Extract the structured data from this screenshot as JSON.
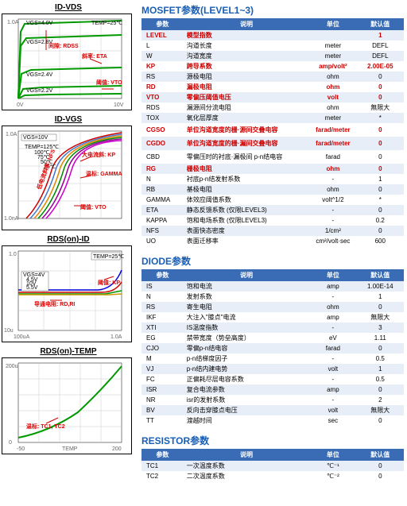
{
  "charts": {
    "id_vds": {
      "title": "ID-VDS",
      "type": "line",
      "xlim": [
        0,
        10
      ],
      "ylim": [
        0,
        1.0
      ],
      "background_color": "#ffffff",
      "grid_color": "#bbbbbb",
      "curve_colors": [
        "#009900",
        "#009900",
        "#009900",
        "#009900",
        "#009900"
      ],
      "curve_labels": [
        "VGS=4.0V",
        "VGS=2.8V",
        "VGS=2.4V",
        "VGS=2.2V"
      ],
      "text_labels": {
        "temp": "TEMP=25℃",
        "rdss": "间隙: RDSS",
        "eta": "斜率: ETA",
        "vto": "阈值: VTO"
      }
    },
    "id_vgs": {
      "title": "ID-VGS",
      "type": "line-log",
      "xlim": [
        0,
        5
      ],
      "ylim": [
        1e-08,
        1
      ],
      "background_color": "#ffffff",
      "grid_color": "#bbbbbb",
      "curve_colors": [
        "#cc0000",
        "#4477cc",
        "#dd8800",
        "#008800",
        "#990099",
        "#cc00cc"
      ],
      "temps": [
        "TEMP=125℃",
        "100℃",
        "75℃",
        "50℃",
        "25℃"
      ],
      "text_labels": {
        "vgs": "VGS=10V",
        "kp": "大电流斜: KP",
        "gamma": "温标: GAMMA",
        "nfs": "低电流斜率: NFS",
        "vto": "阈值: VTO"
      }
    },
    "rds_id": {
      "title": "RDS(on)-ID",
      "type": "line",
      "xlim": [
        0.0001,
        1
      ],
      "ylim": [
        1e-05,
        1
      ],
      "background_color": "#ffffff",
      "grid_color": "#bbbbbb",
      "curve_colors": [
        "#0000dd",
        "#cc0000",
        "#009900",
        "#cc9900"
      ],
      "vgs_labels": [
        "VGS=4V",
        "4.5V",
        "10V",
        "5.5V"
      ],
      "text_labels": {
        "temp": "TEMP=25℃",
        "kp": "阈值: KP",
        "rdri": "导通电阻: RD,RI"
      }
    },
    "rds_temp": {
      "title": "RDS(on)-TEMP",
      "type": "line",
      "xlim": [
        -50,
        200
      ],
      "ylim": [
        1e-05,
        0.0001
      ],
      "background_color": "#ffffff",
      "grid_color": "#bbbbbb",
      "curve_color": "#009900",
      "text_labels": {
        "tc": "温标: TC1, TC2"
      }
    }
  },
  "sections": {
    "mosfet": {
      "title": "MOSFET参数(LEVEL1~3)",
      "headers": [
        "参数",
        "说明",
        "单位",
        "默认值"
      ],
      "rows": [
        {
          "p": "LEVEL",
          "d": "模型指数",
          "u": "",
          "v": "1",
          "hl": true
        },
        {
          "p": "L",
          "d": "沟道长度",
          "u": "meter",
          "v": "DEFL"
        },
        {
          "p": "W",
          "d": "沟道宽度",
          "u": "meter",
          "v": "DEFL"
        },
        {
          "p": "KP",
          "d": "跨导系数",
          "u": "amp/volt²",
          "v": "2.00E-05",
          "hl": true
        },
        {
          "p": "RS",
          "d": "源极电阻",
          "u": "ohm",
          "v": "0"
        },
        {
          "p": "RD",
          "d": "漏极电阻",
          "u": "ohm",
          "v": "0",
          "hl": true
        },
        {
          "p": "VTO",
          "d": "零偏压阈值电压",
          "u": "volt",
          "v": "0",
          "hl": true
        },
        {
          "p": "RDS",
          "d": "漏源间分流电阻",
          "u": "ohm",
          "v": "無限大"
        },
        {
          "p": "TOX",
          "d": "氧化层厚度",
          "u": "meter",
          "v": "*"
        },
        {
          "p": "CGSO",
          "d": "单位沟道宽度的栅·源间交叠电容",
          "u": "farad/meter",
          "v": "0",
          "hl": true,
          "tall": true
        },
        {
          "p": "CGDO",
          "d": "单位沟道宽度的栅·漏间交叠电容",
          "u": "farad/meter",
          "v": "0",
          "hl": true,
          "tall": true
        },
        {
          "p": "CBD",
          "d": "零偏压时的衬底·漏极间 p-n结电容",
          "u": "farad",
          "v": "0",
          "tall": true
        },
        {
          "p": "RG",
          "d": "栅极电阻",
          "u": "ohm",
          "v": "0",
          "hl": true
        },
        {
          "p": "N",
          "d": "衬底p-n结发射系数",
          "u": "-",
          "v": "1"
        },
        {
          "p": "RB",
          "d": "基极电阻",
          "u": "ohm",
          "v": "0"
        },
        {
          "p": "GAMMA",
          "d": "体效应阈值系数",
          "u": "volt^1/2",
          "v": "*"
        },
        {
          "p": "ETA",
          "d": "静态反馈系数 (仅限LEVEL3)",
          "u": "-",
          "v": "0"
        },
        {
          "p": "KAPPA",
          "d": "饱和电场系数 (仅限LEVEL3)",
          "u": "-",
          "v": "0.2"
        },
        {
          "p": "NFS",
          "d": "表面快态密度",
          "u": "1/cm²",
          "v": "0"
        },
        {
          "p": "UO",
          "d": "表面迁移率",
          "u": "cm²/volt·sec",
          "v": "600"
        }
      ]
    },
    "diode": {
      "title": "DIODE参数",
      "headers": [
        "参数",
        "说明",
        "单位",
        "默认值"
      ],
      "rows": [
        {
          "p": "IS",
          "d": "饱和电流",
          "u": "amp",
          "v": "1.00E-14"
        },
        {
          "p": "N",
          "d": "发射系数",
          "u": "-",
          "v": "1"
        },
        {
          "p": "RS",
          "d": "寄生电阻",
          "u": "ohm",
          "v": "0"
        },
        {
          "p": "IKF",
          "d": "大注入\"膝点\"电流",
          "u": "amp",
          "v": "無限大"
        },
        {
          "p": "XTI",
          "d": "IS温度指数",
          "u": "-",
          "v": "3"
        },
        {
          "p": "EG",
          "d": "禁带宽度（势垒高度）",
          "u": "eV",
          "v": "1.11"
        },
        {
          "p": "CJO",
          "d": "零偏p-n结电容",
          "u": "farad",
          "v": "0"
        },
        {
          "p": "M",
          "d": "p-n结梯度因子",
          "u": "-",
          "v": "0.5"
        },
        {
          "p": "VJ",
          "d": "p-n结内建电势",
          "u": "volt",
          "v": "1"
        },
        {
          "p": "FC",
          "d": "正偏耗尽层电容系数",
          "u": "-",
          "v": "0.5"
        },
        {
          "p": "ISR",
          "d": "复合电流参数",
          "u": "amp",
          "v": "0"
        },
        {
          "p": "NR",
          "d": "isr的发射系数",
          "u": "-",
          "v": "2"
        },
        {
          "p": "BV",
          "d": "反向击穿膝点电压",
          "u": "volt",
          "v": "無限大"
        },
        {
          "p": "TT",
          "d": "渡越时间",
          "u": "sec",
          "v": "0"
        }
      ]
    },
    "resistor": {
      "title": "RESISTOR参数",
      "headers": [
        "参数",
        "说明",
        "单位",
        "默认值"
      ],
      "rows": [
        {
          "p": "TC1",
          "d": "一次温度系数",
          "u": "℃⁻¹",
          "v": "0"
        },
        {
          "p": "TC2",
          "d": "二次温度系数",
          "u": "℃⁻²",
          "v": "0"
        }
      ]
    }
  }
}
